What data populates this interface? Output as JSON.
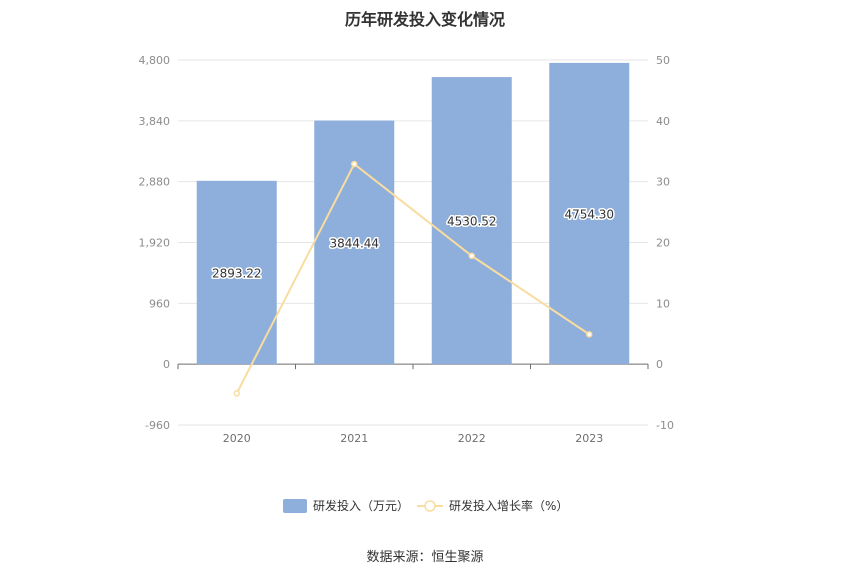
{
  "chart_data": {
    "type": "bar",
    "title": "历年研发投入变化情况",
    "categories": [
      "2020",
      "2021",
      "2022",
      "2023"
    ],
    "series": [
      {
        "name": "研发投入（万元）",
        "type": "bar",
        "axis": "left",
        "color": "#8eaedb",
        "values": [
          2893.22,
          3844.44,
          4530.52,
          4754.3
        ],
        "labels": [
          "2893.22",
          "3844.44",
          "4530.52",
          "4754.30"
        ]
      },
      {
        "name": "研发投入增长率（%）",
        "type": "line",
        "axis": "right",
        "color": "#f8dca0",
        "values": [
          -4.8,
          32.9,
          17.8,
          4.9
        ]
      }
    ],
    "y_left": {
      "min": -960,
      "max": 4800,
      "ticks": [
        "-960",
        "0",
        "960",
        "1,920",
        "2,880",
        "3,840",
        "4,800"
      ],
      "tick_values": [
        -960,
        0,
        960,
        1920,
        2880,
        3840,
        4800
      ]
    },
    "y_right": {
      "min": -10,
      "max": 50,
      "ticks": [
        "-10",
        "0",
        "10",
        "20",
        "30",
        "40",
        "50"
      ],
      "tick_values": [
        -10,
        0,
        10,
        20,
        30,
        40,
        50
      ]
    },
    "legend_position": "bottom-center",
    "grid": true
  },
  "source": "数据来源：恒生聚源"
}
